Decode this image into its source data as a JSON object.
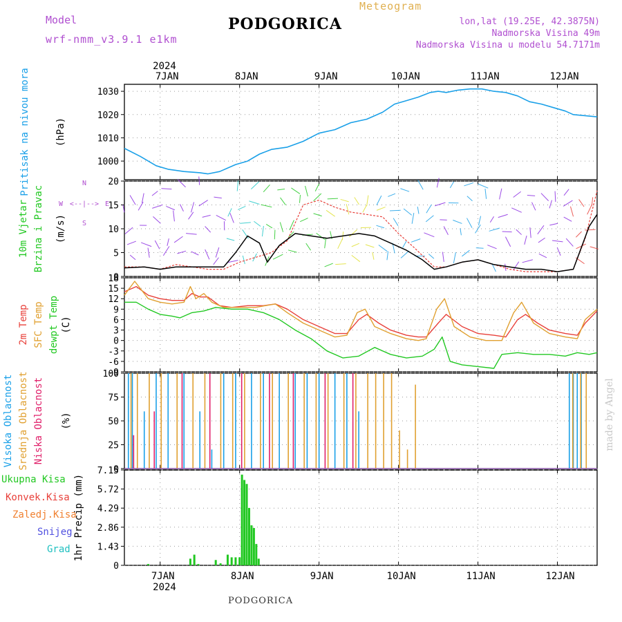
{
  "header": {
    "title": "PODGORICA",
    "model_label": "Model",
    "model_name": "wrf-nmm_v3.9.1  e1km",
    "meteogram": "Meteogram",
    "coords": "lon,lat (19.25E, 42.3875N)",
    "elevation": "Nadmorska Visina 49m",
    "model_elevation": "Nadmorska Visina u modelu 54.7171m"
  },
  "footer": {
    "station": "PODGORICA",
    "credit": "made by Angel"
  },
  "colors": {
    "pressure": "#1aa0e8",
    "temp2m": "#e8403a",
    "sfc": "#e0a030",
    "dewpt": "#22c822",
    "cloud_high": "#1aa0e8",
    "cloud_mid": "#e0a030",
    "cloud_low": "#e0206a",
    "precip_total": "#22c822",
    "precip_conv": "#e8403a",
    "precip_frozen": "#f08030",
    "snow": "#5050e0",
    "hail": "#20c0c0",
    "wind_dir_label": "#b04fd0",
    "axis": "#000000",
    "grid": "#999999"
  },
  "chart_data": [
    {
      "type": "line",
      "panel": "pressure",
      "ylabel_left": "Pritisak na nivou mora",
      "ylabel_unit": "(hPa)",
      "year_label": "2024",
      "x_ticks": [
        "7JAN",
        "8JAN",
        "9JAN",
        "10JAN",
        "11JAN",
        "12JAN"
      ],
      "x_range_days": [
        6.55,
        12.5
      ],
      "ylim": [
        992,
        1033
      ],
      "y_ticks": [
        1000,
        1010,
        1020,
        1030
      ],
      "grid": true,
      "series": [
        {
          "x": [
            6.55,
            6.75,
            6.95,
            7.1,
            7.3,
            7.5,
            7.6,
            7.75,
            7.95,
            8.1,
            8.25,
            8.4,
            8.6,
            8.8,
            9.0,
            9.2,
            9.4,
            9.6,
            9.8,
            9.95,
            10.1,
            10.25,
            10.4,
            10.5,
            10.6,
            10.75,
            10.9,
            11.05,
            11.2,
            11.35,
            11.5,
            11.65,
            11.8,
            11.95,
            12.1,
            12.2,
            12.35,
            12.5
          ],
          "values": [
            1005.5,
            1002,
            998,
            996.5,
            995.5,
            995,
            994.5,
            995.5,
            998.5,
            1000,
            1003,
            1005,
            1006,
            1008.5,
            1012,
            1013.5,
            1016.5,
            1018,
            1021,
            1024.5,
            1026,
            1027.5,
            1029.5,
            1030,
            1029.5,
            1030.5,
            1031,
            1031,
            1030,
            1029.5,
            1028,
            1025.5,
            1024.5,
            1023,
            1021.5,
            1020,
            1019.5,
            1019
          ]
        }
      ]
    },
    {
      "type": "line",
      "panel": "wind",
      "ylabel_left": [
        "10m Vjetar",
        "Brzina i Pravac"
      ],
      "ylabel_unit": "(m/s)",
      "compass": {
        "n": "N",
        "s": "S",
        "e": "E",
        "w": "W",
        "arrows": "<--|-->"
      },
      "ylim": [
        0,
        20
      ],
      "y_ticks": [
        0,
        5,
        10,
        15,
        20
      ],
      "grid": true,
      "series": [
        {
          "name": "speed",
          "x": [
            6.55,
            6.8,
            7.0,
            7.2,
            7.4,
            7.6,
            7.8,
            7.95,
            8.1,
            8.25,
            8.35,
            8.5,
            8.7,
            8.9,
            9.1,
            9.3,
            9.5,
            9.7,
            9.9,
            10.1,
            10.3,
            10.45,
            10.6,
            10.8,
            11.0,
            11.2,
            11.4,
            11.6,
            11.8,
            12.0,
            12.2,
            12.3,
            12.4,
            12.5
          ],
          "values": [
            1.8,
            2.0,
            1.5,
            2.0,
            2.0,
            2.0,
            2.0,
            5.0,
            8.5,
            7.0,
            3.0,
            6.5,
            9.0,
            8.5,
            8.0,
            8.5,
            9.0,
            8.5,
            7.0,
            5.5,
            3.5,
            1.5,
            2.0,
            3.0,
            3.5,
            2.5,
            2.0,
            1.5,
            1.5,
            1.0,
            1.5,
            6.0,
            10.5,
            13.0
          ]
        },
        {
          "name": "gust",
          "x": [
            6.55,
            6.8,
            7.0,
            7.2,
            7.4,
            7.6,
            7.8,
            8.0,
            8.2,
            8.4,
            8.6,
            8.8,
            9.0,
            9.2,
            9.4,
            9.6,
            9.8,
            10.0,
            10.2,
            10.45,
            10.6,
            10.8,
            11.0,
            11.2,
            11.4,
            11.6,
            11.8,
            12.0,
            12.2,
            12.35,
            12.5
          ],
          "values": [
            2.0,
            2.0,
            1.5,
            2.5,
            2.0,
            1.5,
            1.5,
            3.0,
            4.0,
            5.0,
            7.5,
            15.0,
            16.0,
            14.5,
            13.5,
            13.0,
            12.5,
            9.0,
            6.0,
            2.0,
            2.0,
            3.0,
            3.5,
            2.5,
            1.5,
            1.0,
            1.0,
            1.0,
            1.5,
            8.0,
            18.0
          ]
        }
      ],
      "barb_intervals": [
        {
          "from": 6.55,
          "to": 7.9,
          "color": "#8a2be2"
        },
        {
          "from": 7.9,
          "to": 8.3,
          "color": "#22c8c8"
        },
        {
          "from": 8.3,
          "to": 9.2,
          "color": "#22c822"
        },
        {
          "from": 9.2,
          "to": 9.75,
          "color": "#e0e030"
        },
        {
          "from": 9.75,
          "to": 10.45,
          "color": "#1aa0e8"
        },
        {
          "from": 10.45,
          "to": 10.65,
          "color": "#8a2be2"
        },
        {
          "from": 10.65,
          "to": 11.2,
          "color": "#1aa0e8"
        },
        {
          "from": 11.2,
          "to": 12.2,
          "color": "#8a2be2"
        },
        {
          "from": 12.2,
          "to": 12.5,
          "color": "#e8403a"
        }
      ]
    },
    {
      "type": "line",
      "panel": "temperature",
      "ylabel_left": [
        "2m Temp",
        "SFC Temp",
        "dewpt Temp"
      ],
      "ylabel_unit": "(C)",
      "ylim": [
        -9,
        18
      ],
      "y_ticks": [
        -9,
        -6,
        -3,
        0,
        3,
        6,
        9,
        12,
        15,
        18
      ],
      "grid": true,
      "series": [
        {
          "name": "2m Temp",
          "x": [
            6.55,
            6.7,
            6.85,
            7.0,
            7.15,
            7.3,
            7.4,
            7.5,
            7.6,
            7.75,
            7.9,
            8.1,
            8.3,
            8.45,
            8.6,
            8.8,
            9.0,
            9.2,
            9.35,
            9.5,
            9.6,
            9.75,
            9.9,
            10.1,
            10.25,
            10.35,
            10.5,
            10.6,
            10.8,
            11.0,
            11.2,
            11.35,
            11.5,
            11.6,
            11.75,
            11.9,
            12.1,
            12.25,
            12.35,
            12.5
          ],
          "values": [
            14,
            15.5,
            13,
            12,
            11.5,
            11.5,
            13.5,
            12.5,
            12.5,
            10,
            9.5,
            10,
            10,
            10.5,
            9,
            6,
            4,
            2,
            2,
            6,
            7.5,
            5,
            3,
            1.5,
            1,
            1,
            5,
            7.5,
            4,
            2,
            1.5,
            1,
            6,
            7.5,
            5,
            3,
            2,
            1.5,
            5,
            8.5
          ]
        },
        {
          "name": "SFC Temp",
          "x": [
            6.55,
            6.68,
            6.85,
            7.0,
            7.15,
            7.3,
            7.38,
            7.45,
            7.55,
            7.65,
            7.8,
            8.0,
            8.2,
            8.45,
            8.6,
            8.8,
            9.0,
            9.2,
            9.35,
            9.48,
            9.58,
            9.7,
            9.9,
            10.1,
            10.25,
            10.35,
            10.48,
            10.58,
            10.7,
            10.9,
            11.1,
            11.3,
            11.45,
            11.55,
            11.7,
            11.9,
            12.1,
            12.25,
            12.35,
            12.5
          ],
          "values": [
            13,
            17,
            12,
            11,
            10.5,
            11,
            15.5,
            12,
            13.5,
            11,
            9.5,
            9.5,
            9.5,
            10.5,
            8,
            5,
            3,
            1,
            1.5,
            8,
            9,
            4,
            2,
            0.5,
            0,
            0.5,
            9,
            12,
            4,
            1,
            0,
            0,
            8,
            11,
            5,
            2,
            1,
            0.5,
            6,
            9
          ]
        },
        {
          "name": "dewpt Temp",
          "x": [
            6.55,
            6.7,
            6.85,
            7.0,
            7.15,
            7.25,
            7.4,
            7.55,
            7.7,
            7.9,
            8.1,
            8.3,
            8.5,
            8.7,
            8.9,
            9.1,
            9.3,
            9.5,
            9.7,
            9.9,
            10.1,
            10.3,
            10.45,
            10.55,
            10.65,
            10.8,
            11.0,
            11.2,
            11.3,
            11.5,
            11.7,
            11.9,
            12.1,
            12.25,
            12.4,
            12.5
          ],
          "values": [
            11,
            11,
            9,
            7.5,
            7,
            6.5,
            8,
            8.5,
            9.5,
            9,
            9,
            8,
            6,
            3,
            0.5,
            -3,
            -5,
            -4.5,
            -2,
            -4,
            -5,
            -4.5,
            -2.5,
            1,
            -6,
            -7,
            -7.5,
            -8,
            -4,
            -3.5,
            -4,
            -4,
            -4.5,
            -3.5,
            -4,
            -3.5
          ]
        }
      ]
    },
    {
      "type": "bar",
      "panel": "cloud",
      "ylabel_left": [
        "Visoka Oblacnost",
        "Srednja Oblacnost",
        "Niska Oblacnost"
      ],
      "ylabel_unit": "(%)",
      "ylim": [
        0,
        100
      ],
      "y_ticks": [
        0,
        25,
        50,
        75,
        100
      ],
      "grid": true,
      "credit_text": "made by Angel",
      "series": [
        {
          "name": "Visoka Oblacnost",
          "x": [
            6.6,
            6.65,
            6.8,
            6.95,
            7.1,
            7.3,
            7.5,
            7.65,
            7.8,
            7.95,
            8.15,
            8.3,
            8.5,
            8.7,
            8.85,
            9.0,
            9.2,
            9.35,
            9.5,
            12.15,
            12.2,
            12.25,
            12.3
          ],
          "values": [
            100,
            100,
            60,
            100,
            100,
            100,
            60,
            20,
            100,
            100,
            100,
            100,
            100,
            100,
            100,
            100,
            100,
            100,
            60,
            100,
            100,
            100,
            100
          ]
        },
        {
          "name": "Srednja Oblacnost",
          "x": [
            6.62,
            6.7,
            6.85,
            7.0,
            7.2,
            7.4,
            7.55,
            7.75,
            7.9,
            8.05,
            8.25,
            8.4,
            8.6,
            8.8,
            8.95,
            9.1,
            9.3,
            9.45,
            9.6,
            9.7,
            9.8,
            9.9,
            10.0,
            10.1,
            10.2,
            12.18,
            12.28,
            12.35
          ],
          "values": [
            100,
            100,
            100,
            100,
            100,
            100,
            100,
            100,
            100,
            100,
            100,
            100,
            100,
            100,
            100,
            100,
            100,
            100,
            100,
            100,
            100,
            100,
            40,
            20,
            88,
            100,
            100,
            100
          ]
        },
        {
          "name": "Niska Oblacnost",
          "x": [
            6.64,
            6.9,
            7.25,
            7.6,
            8.0,
            8.35,
            8.65,
            9.05,
            9.4
          ],
          "values": [
            35,
            60,
            100,
            100,
            100,
            100,
            100,
            100,
            100
          ]
        }
      ]
    },
    {
      "type": "bar",
      "panel": "precip",
      "ylabel_unit": "1hr Precip (mm)",
      "legend": [
        "Ukupna Kisa",
        "Konvek.Kisa",
        "Zaledj.Kisa",
        "Snijeg",
        "Grad"
      ],
      "ylim": [
        0,
        7.15
      ],
      "y_ticks": [
        0,
        1.43,
        2.86,
        4.29,
        5.72,
        7.15
      ],
      "grid": true,
      "x_ticks_bottom": [
        "7JAN",
        "8JAN",
        "9JAN",
        "10JAN",
        "11JAN",
        "12JAN"
      ],
      "year_label_bottom": "2024",
      "series": [
        {
          "name": "Ukupna Kisa",
          "x": [
            6.85,
            7.38,
            7.43,
            7.48,
            7.7,
            7.76,
            7.85,
            7.9,
            7.95,
            8.0,
            8.03,
            8.06,
            8.09,
            8.12,
            8.15,
            8.18,
            8.21,
            8.24
          ],
          "values": [
            0.1,
            0.5,
            0.8,
            0.1,
            0.4,
            0.15,
            0.8,
            0.6,
            0.6,
            0.6,
            6.8,
            6.4,
            6.1,
            4.3,
            3.0,
            2.8,
            1.6,
            0.5
          ]
        }
      ]
    }
  ]
}
